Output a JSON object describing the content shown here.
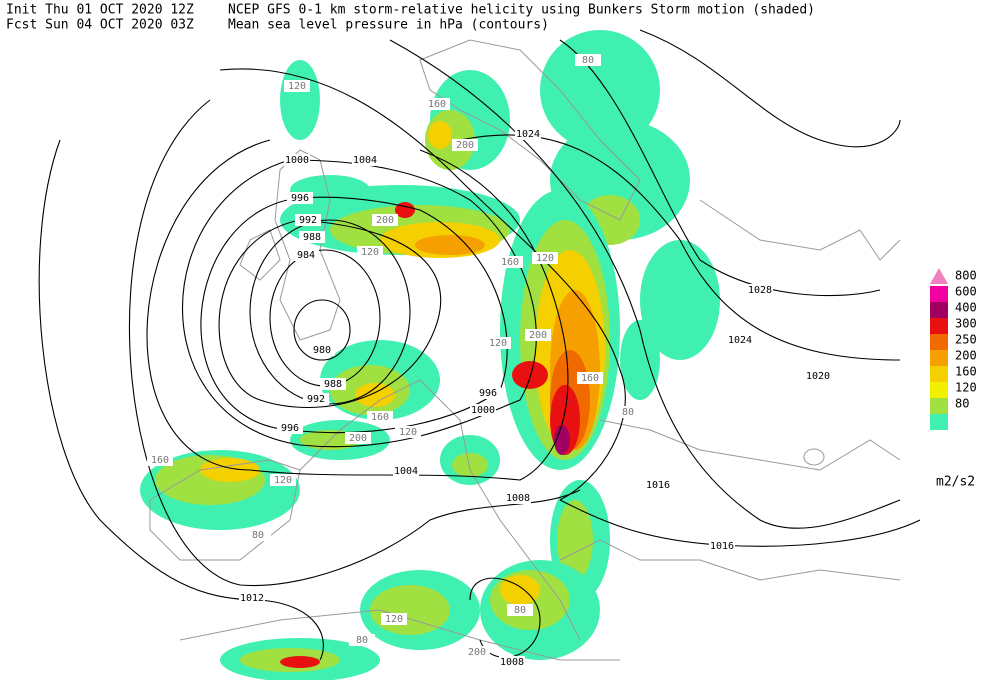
{
  "header": {
    "init": "Init  Thu 01 OCT 2020 12Z",
    "init_title": "NCEP GFS 0-1 km storm-relative helicity using Bunkers Storm motion (shaded)",
    "forecast": "Fcst Sun 04 OCT 2020 03Z",
    "forecast_title": "Mean sea level pressure in hPa (contours)"
  },
  "legend": {
    "levels": [
      {
        "label": "800",
        "color": "#f080c0"
      },
      {
        "label": "600",
        "color": "#f000a0"
      },
      {
        "label": "400",
        "color": "#a00060"
      },
      {
        "label": "300",
        "color": "#e81010"
      },
      {
        "label": "250",
        "color": "#f06a00"
      },
      {
        "label": "200",
        "color": "#f5a000"
      },
      {
        "label": "160",
        "color": "#f5d000"
      },
      {
        "label": "120",
        "color": "#f0f000"
      },
      {
        "label": "80",
        "color": "#a0e040"
      }
    ],
    "base_color": "#40f0b0",
    "unit": "m2/s2"
  },
  "isobar_labels": [
    "1000",
    "1004",
    "996",
    "992",
    "988",
    "984",
    "980",
    "988",
    "992",
    "996",
    "1024",
    "1028",
    "1024",
    "1020",
    "996",
    "1000",
    "1004",
    "1008",
    "1016",
    "1016",
    "1012",
    "1008"
  ],
  "helicity_labels": [
    "120",
    "160",
    "200",
    "80",
    "200",
    "120",
    "160",
    "120",
    "200",
    "160",
    "120",
    "80",
    "160",
    "120",
    "200",
    "80",
    "120",
    "160",
    "80",
    "120",
    "80",
    "200"
  ]
}
